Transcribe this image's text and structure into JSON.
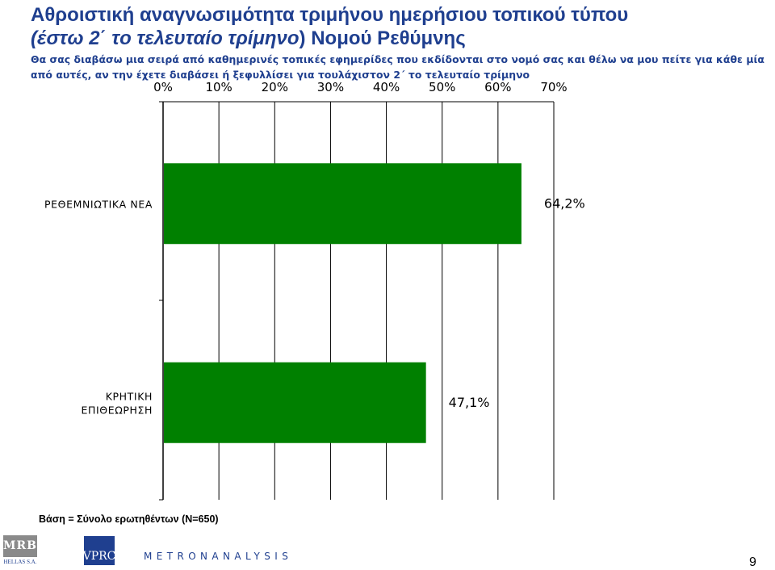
{
  "title": {
    "line1": "Αθροιστική αναγνωσιμότητα τριμήνου ημερήσιου τοπικού τύπου",
    "line2_italic": "(έστω 2΄ το τελευταίο τρίμηνο",
    "line2_rest": ") Νομού Ρεθύμνης"
  },
  "question": "Θα σας διαβάσω μια σειρά από καθημερινές τοπικές εφημερίδες που εκδίδονται στο νομό σας και θέλω να μου πείτε για κάθε μία από αυτές, αν την έχετε διαβάσει ή ξεφυλλίσει για τουλάχιστον 2΄ το τελευταίο τρίμηνο",
  "chart_data": {
    "type": "bar",
    "orientation": "horizontal",
    "categories": [
      "ΡΕΘΕΜΝΙΩΤΙΚΑ ΝΕΑ",
      "ΚΡΗΤΙΚΗ ΕΠΙΘΕΩΡΗΣΗ"
    ],
    "category_lines": [
      [
        "ΡΕΘΕΜΝΙΩΤΙΚΑ ΝΕΑ"
      ],
      [
        "ΚΡΗΤΙΚΗ",
        "ΕΠΙΘΕΩΡΗΣΗ"
      ]
    ],
    "values": [
      64.2,
      47.1
    ],
    "value_labels": [
      "64,2%",
      "47,1%"
    ],
    "x_ticks": [
      "0%",
      "10%",
      "20%",
      "30%",
      "40%",
      "50%",
      "60%",
      "70%"
    ],
    "xlim": [
      0,
      70
    ],
    "bar_color": "#008000",
    "grid": true,
    "x_axis_position": "top"
  },
  "base_note": "Βάση = Σύνολο ερωτηθέντων (N=650)",
  "footer": {
    "mrb_logo": "MRB",
    "mrb_sub": "HELLAS S.A.",
    "vprc_logo": "VPRC",
    "metron_logo": "METRONANALYSIS",
    "page_number": "9"
  }
}
